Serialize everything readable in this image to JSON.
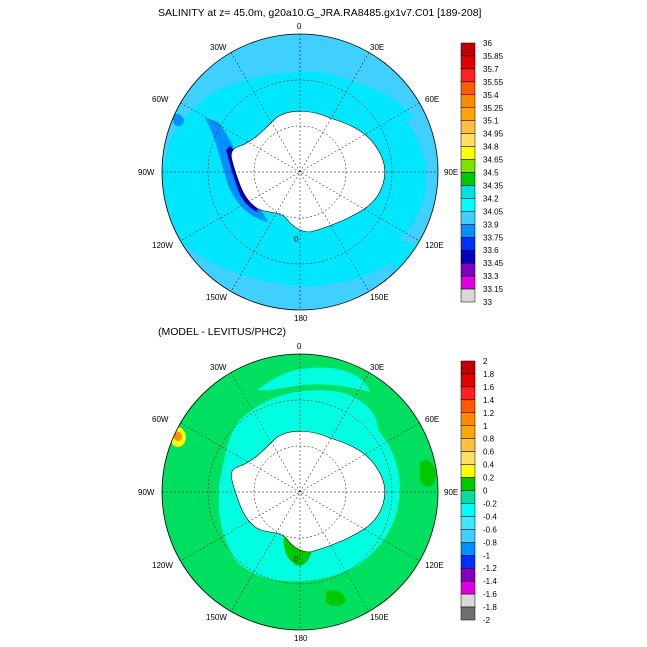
{
  "panels": [
    {
      "id": "salinity",
      "title": "SALINITY at z=  45.0m, g20a10.G_JRA.RA8485.gx1v7.C01 [189-208]",
      "lon_labels": [
        "0",
        "30E",
        "60E",
        "90E",
        "120E",
        "150E",
        "180",
        "150W",
        "120W",
        "90W",
        "60W",
        "30W"
      ],
      "contour_label": "0",
      "colorbar": {
        "labels": [
          "36",
          "35.85",
          "35.7",
          "35.55",
          "35.4",
          "35.25",
          "35.1",
          "34.95",
          "34.8",
          "34.65",
          "34.5",
          "34.35",
          "34.2",
          "34.05",
          "33.9",
          "33.75",
          "33.6",
          "33.45",
          "33.3",
          "33.15",
          "33"
        ],
        "colors": [
          "#c00000",
          "#e00000",
          "#ff2020",
          "#ff5a00",
          "#ff8c00",
          "#ffa500",
          "#ffc040",
          "#ffe060",
          "#ffff00",
          "#80e000",
          "#00c800",
          "#00e0e0",
          "#00ffff",
          "#40d0ff",
          "#0090ff",
          "#0030ff",
          "#0000c0",
          "#8000c0",
          "#e000e0",
          "#d8d8d8"
        ]
      }
    },
    {
      "id": "difference",
      "title": "(MODEL - LEVITUS/PHC2)",
      "lon_labels": [
        "0",
        "30E",
        "60E",
        "90E",
        "120E",
        "150E",
        "180",
        "150W",
        "120W",
        "90W",
        "60W",
        "30W"
      ],
      "contour_label": "0",
      "colorbar": {
        "labels": [
          "2",
          "1.8",
          "1.6",
          "1.4",
          "1.2",
          "1",
          "0.8",
          "0.6",
          "0.4",
          "0.2",
          "0",
          "-0.2",
          "-0.4",
          "-0.6",
          "-0.8",
          "-1",
          "-1.2",
          "-1.4",
          "-1.6",
          "-1.8",
          "-2"
        ],
        "colors": [
          "#c00000",
          "#e00000",
          "#ff2020",
          "#ff5a00",
          "#ff8c00",
          "#ffa500",
          "#ffc040",
          "#ffe060",
          "#ffff00",
          "#00c800",
          "#00e0a0",
          "#00ffff",
          "#40e8ff",
          "#40d0ff",
          "#0090ff",
          "#0030ff",
          "#8000c0",
          "#e000e0",
          "#d8d8d8",
          "#707070"
        ]
      }
    }
  ]
}
